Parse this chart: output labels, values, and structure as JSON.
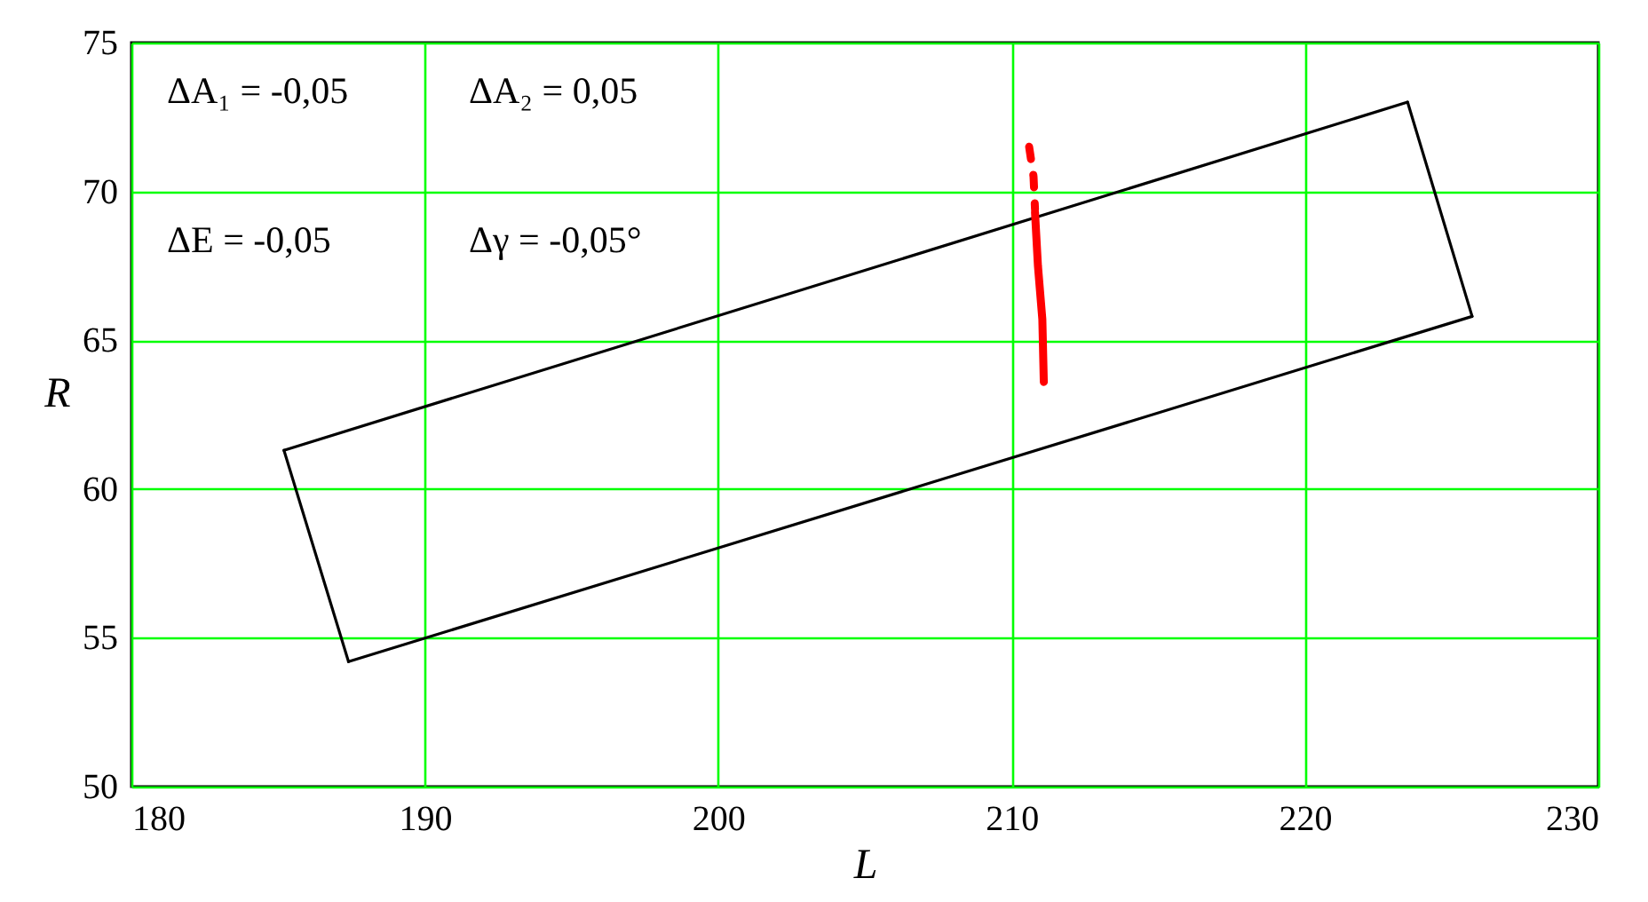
{
  "chart_data": {
    "type": "line",
    "xlabel": "L",
    "ylabel": "R",
    "xlim": [
      180,
      230
    ],
    "xticks": [
      180,
      190,
      200,
      210,
      220,
      230
    ],
    "ylim": [
      50,
      75
    ],
    "yticks": [
      50,
      55,
      60,
      65,
      70,
      75
    ],
    "grid": true,
    "marker": "none",
    "annotations": [
      "ΔA₁ = -0,05",
      "ΔA₂ = 0,05",
      "ΔE = -0,05",
      "Δγ = -0,05°"
    ],
    "series": [
      {
        "color": "#000000",
        "line_style": "solid",
        "x": [
          185.2,
          223.5
        ],
        "values": [
          61.3,
          73.0
        ]
      },
      {
        "color": "#000000",
        "line_style": "solid",
        "x": [
          223.5,
          225.7
        ],
        "values": [
          73.0,
          65.8
        ]
      },
      {
        "color": "#000000",
        "line_style": "solid",
        "x": [
          187.4,
          225.7
        ],
        "values": [
          54.2,
          65.8
        ]
      },
      {
        "color": "#000000",
        "line_style": "solid",
        "x": [
          185.2,
          187.4
        ],
        "values": [
          61.3,
          54.2
        ]
      },
      {
        "color": "#ff0000",
        "line_style": "dashed",
        "x": [
          210.6,
          210.75,
          210.8
        ],
        "values": [
          71.5,
          70.5,
          69.4
        ]
      },
      {
        "color": "#ff0000",
        "line_style": "solid",
        "x": [
          210.8,
          210.9,
          211.05,
          211.1
        ],
        "values": [
          69.3,
          67.5,
          65.7,
          63.6
        ]
      }
    ]
  }
}
